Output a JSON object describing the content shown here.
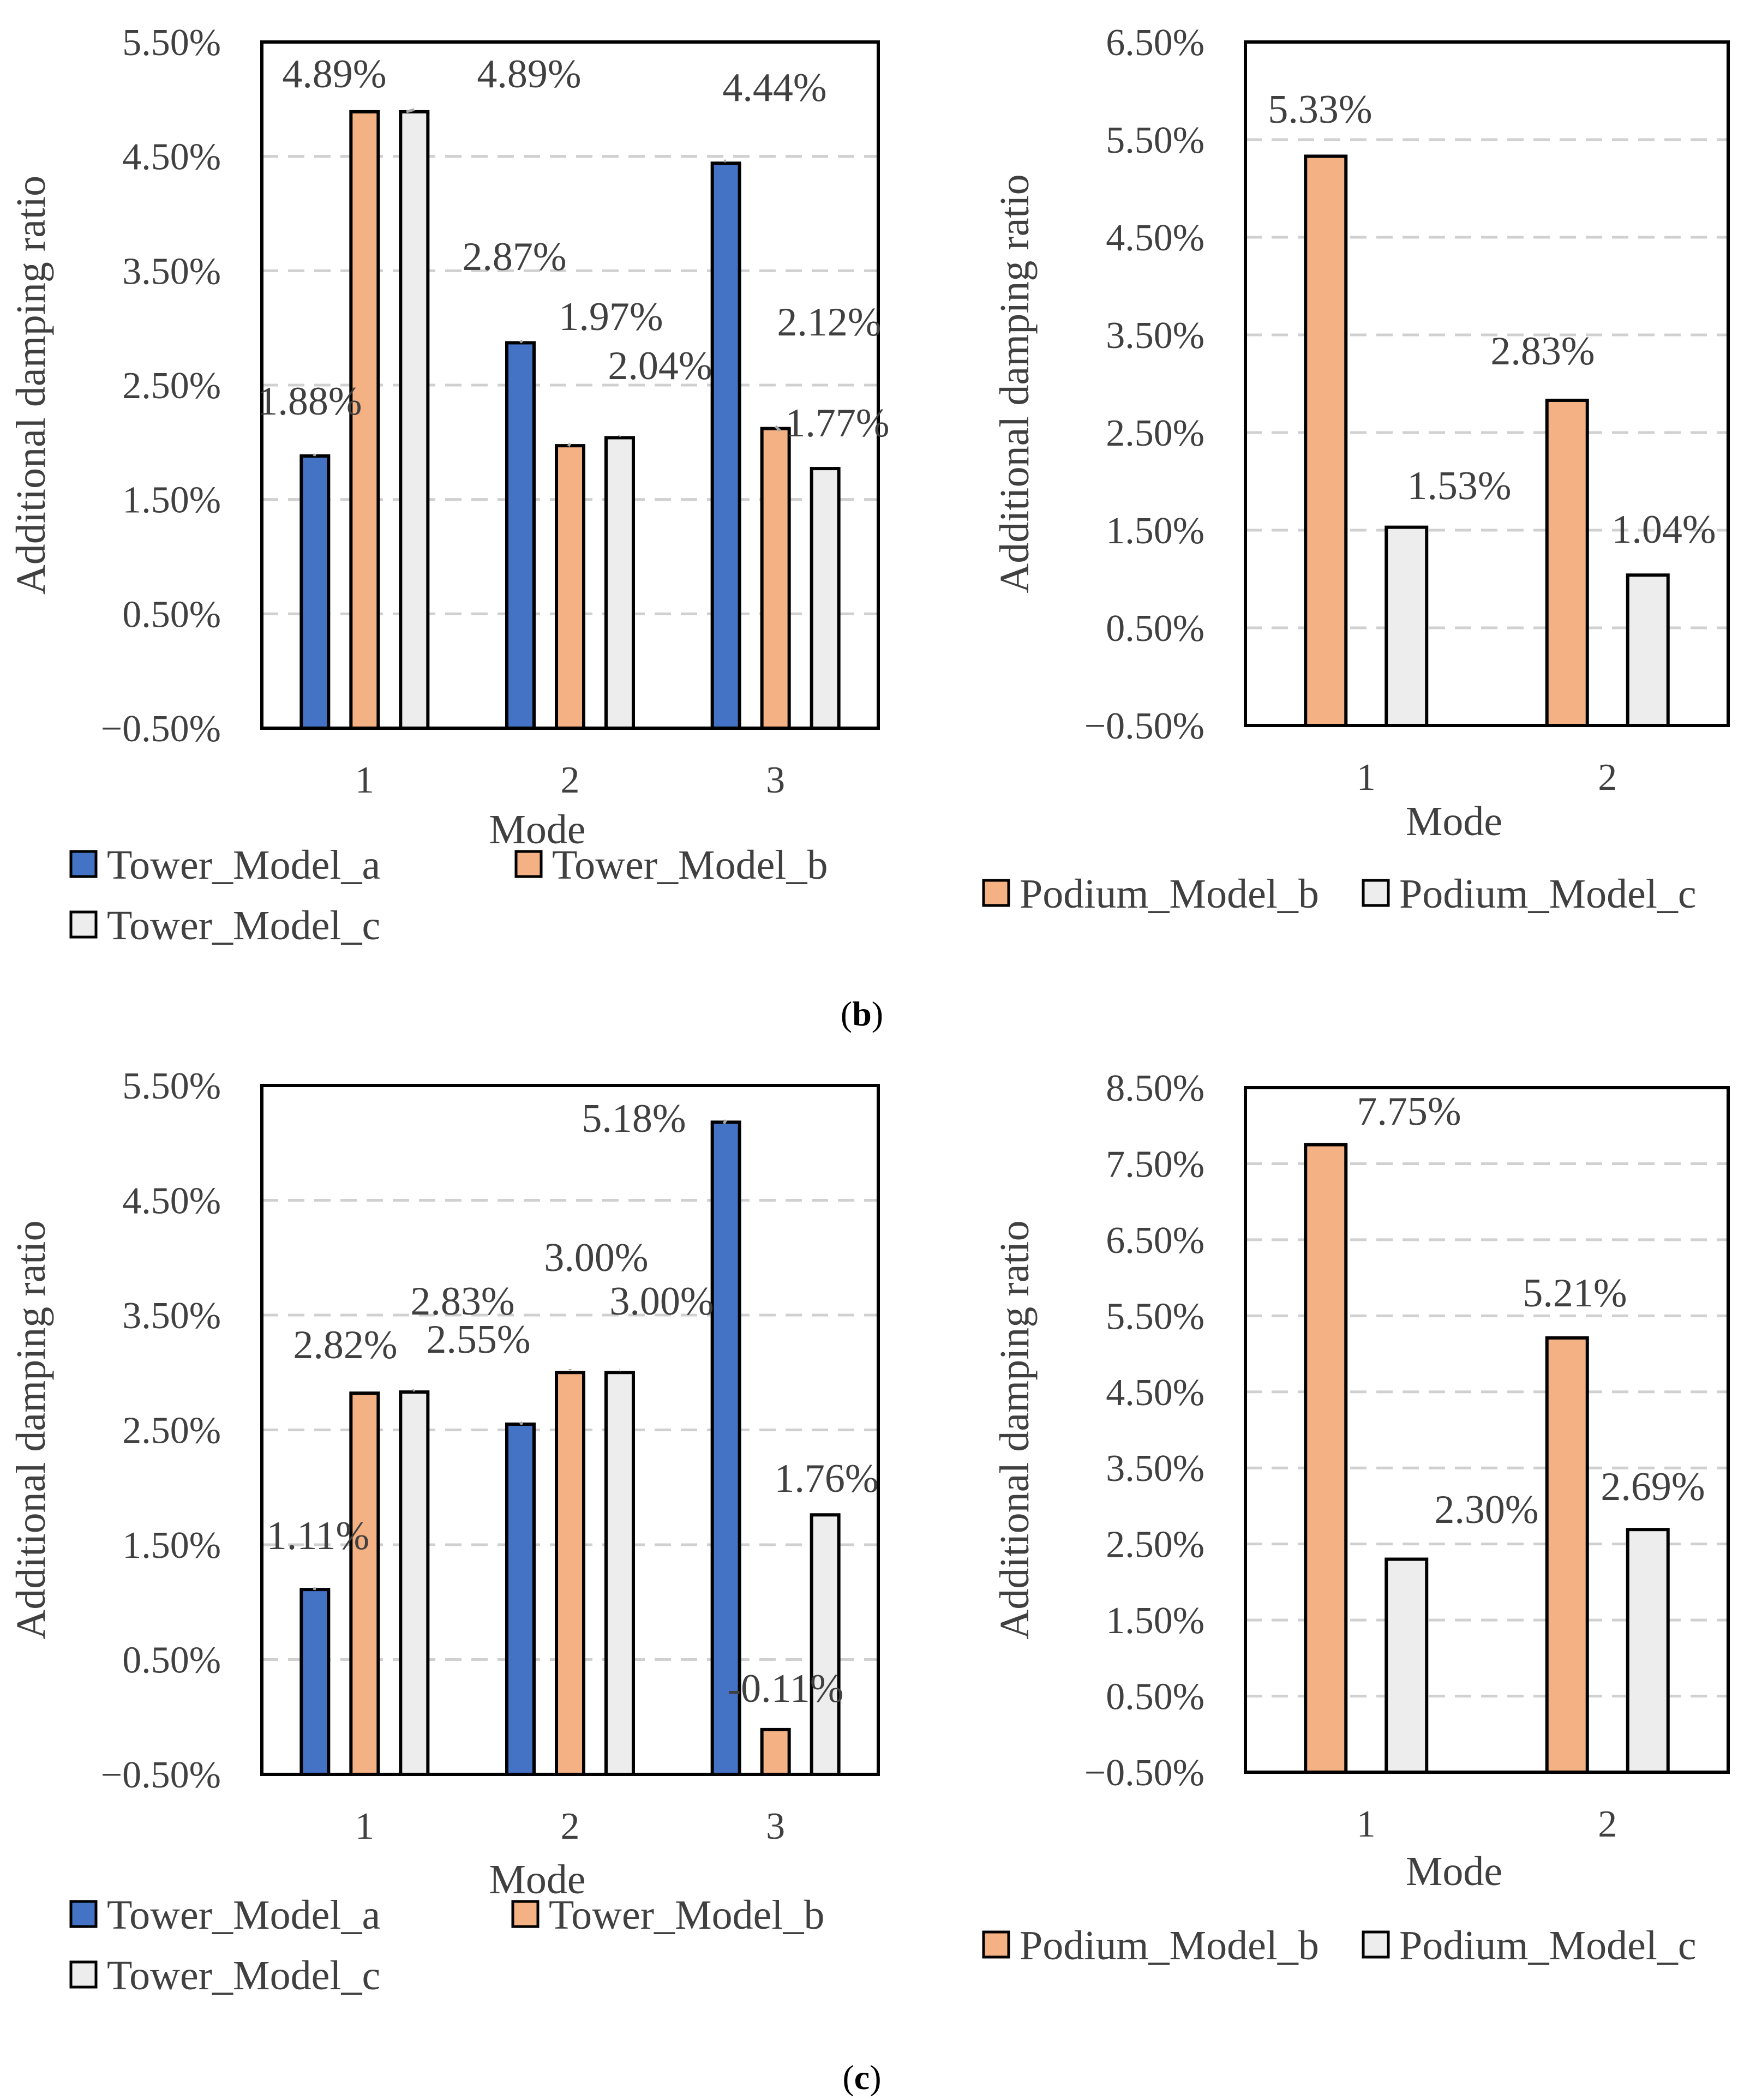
{
  "chart_data": [
    {
      "type": "bar",
      "panel": "b",
      "categories": [
        "1",
        "2",
        "3"
      ],
      "series": [
        {
          "name": "Tower_Model_a",
          "values": [
            1.88,
            2.87,
            4.44
          ],
          "labels": [
            "1.88%",
            "2.87%",
            "4.44%"
          ],
          "color": "#4472C4"
        },
        {
          "name": "Tower_Model_b",
          "values": [
            4.89,
            1.97,
            2.12
          ],
          "labels": [
            "4.89%",
            "1.97%",
            "2.12%"
          ],
          "color": "#F4B183"
        },
        {
          "name": "Tower_Model_c",
          "values": [
            4.89,
            2.04,
            1.77
          ],
          "labels": [
            "4.89%",
            "2.04%",
            "1.77%"
          ],
          "color": "#EDEDED"
        }
      ],
      "xlabel": "Mode",
      "ylabel": "Additional damping ratio",
      "ylim": [
        -0.5,
        5.5
      ],
      "yticks": [
        "5.50%",
        "4.50%",
        "3.50%",
        "2.50%",
        "1.50%",
        "0.50%",
        "−0.50%"
      ],
      "grid": true,
      "legend": "bottom"
    },
    {
      "type": "bar",
      "panel": "b",
      "categories": [
        "1",
        "2"
      ],
      "series": [
        {
          "name": "Podium_Model_b",
          "values": [
            5.33,
            2.83
          ],
          "labels": [
            "5.33%",
            "2.83%"
          ],
          "color": "#F4B183"
        },
        {
          "name": "Podium_Model_c",
          "values": [
            1.53,
            1.04
          ],
          "labels": [
            "1.53%",
            "1.04%"
          ],
          "color": "#EDEDED"
        }
      ],
      "xlabel": "Mode",
      "ylabel": "Additional damping ratio",
      "ylim": [
        -0.5,
        6.5
      ],
      "yticks": [
        "6.50%",
        "5.50%",
        "4.50%",
        "3.50%",
        "2.50%",
        "1.50%",
        "0.50%",
        "−0.50%"
      ],
      "grid": true,
      "legend": "bottom"
    },
    {
      "type": "bar",
      "panel": "c",
      "categories": [
        "1",
        "2",
        "3"
      ],
      "series": [
        {
          "name": "Tower_Model_a",
          "values": [
            1.11,
            2.55,
            5.18
          ],
          "labels": [
            "1.11%",
            "2.55%",
            "5.18%"
          ],
          "color": "#4472C4"
        },
        {
          "name": "Tower_Model_b",
          "values": [
            2.82,
            3.0,
            -0.11
          ],
          "labels": [
            "2.82%",
            "3.00%",
            "-0.11%"
          ],
          "color": "#F4B183"
        },
        {
          "name": "Tower_Model_c",
          "values": [
            2.83,
            3.0,
            1.76
          ],
          "labels": [
            "2.83%",
            "3.00%",
            "1.76%"
          ],
          "color": "#EDEDED"
        }
      ],
      "xlabel": "Mode",
      "ylabel": "Additional damping ratio",
      "ylim": [
        -0.5,
        5.5
      ],
      "yticks": [
        "5.50%",
        "4.50%",
        "3.50%",
        "2.50%",
        "1.50%",
        "0.50%",
        "−0.50%"
      ],
      "grid": true,
      "legend": "bottom"
    },
    {
      "type": "bar",
      "panel": "c",
      "categories": [
        "1",
        "2"
      ],
      "series": [
        {
          "name": "Podium_Model_b",
          "values": [
            7.75,
            5.21
          ],
          "labels": [
            "7.75%",
            "5.21%"
          ],
          "color": "#F4B183"
        },
        {
          "name": "Podium_Model_c",
          "values": [
            2.3,
            2.69
          ],
          "labels": [
            "2.30%",
            "2.69%"
          ],
          "color": "#EDEDED"
        }
      ],
      "xlabel": "Mode",
      "ylabel": "Additional damping ratio",
      "ylim": [
        -0.5,
        8.5
      ],
      "yticks": [
        "8.50%",
        "7.50%",
        "6.50%",
        "5.50%",
        "4.50%",
        "3.50%",
        "2.50%",
        "1.50%",
        "0.50%",
        "−0.50%"
      ],
      "grid": true,
      "legend": "bottom"
    }
  ],
  "panel_labels": {
    "b": {
      "open": "(",
      "letter": "b",
      "close": ")"
    },
    "c": {
      "open": "(",
      "letter": "c",
      "close": ")"
    }
  }
}
